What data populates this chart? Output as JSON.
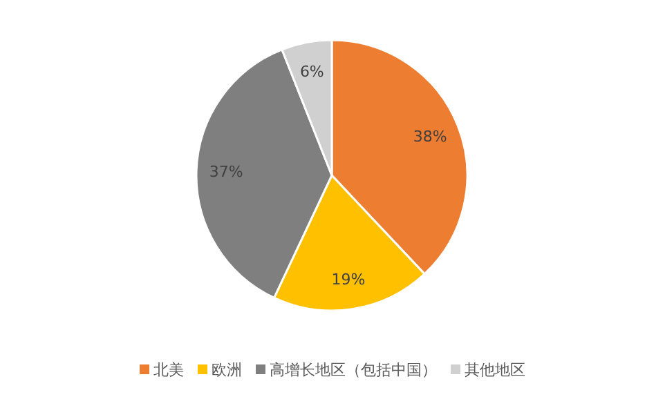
{
  "chart_data": {
    "type": "pie",
    "categories": [
      "北美",
      "欧洲",
      "高增长地区（包括中国）",
      "其他地区"
    ],
    "values": [
      38,
      19,
      37,
      6
    ],
    "colors": [
      "#ed7d31",
      "#ffc000",
      "#7f7f7f",
      "#d0d0d0"
    ],
    "value_labels": [
      "38%",
      "19%",
      "37%",
      "6%"
    ],
    "legend": "bottom"
  }
}
